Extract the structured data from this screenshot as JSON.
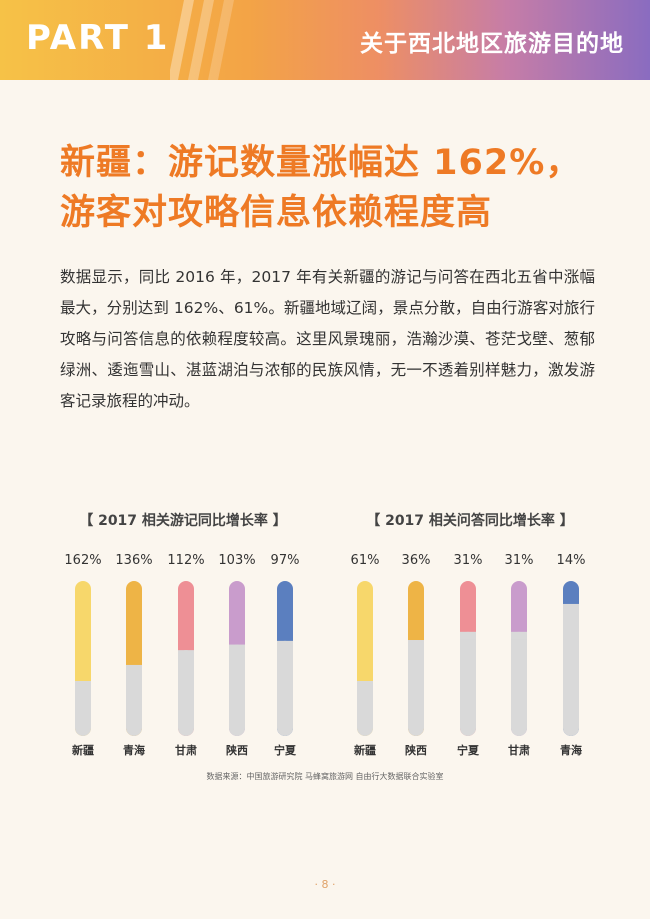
{
  "header": {
    "part_label": "PART 1",
    "section_title": "关于西北地区旅游目的地"
  },
  "article": {
    "title_line1": "新疆：游记数量涨幅达 162%，",
    "title_line2": "游客对攻略信息依赖程度高",
    "body": "数据显示，同比 2016 年，2017 年有关新疆的游记与问答在西北五省中涨幅最大，分别达到 162%、61%。新疆地域辽阔，景点分散，自由行游客对旅行攻略与问答信息的依赖程度较高。这里风景瑰丽，浩瀚沙漠、苍茫戈壁、葱郁绿洲、逶迤雪山、湛蓝湖泊与浓郁的民族风情，无一不透着别样魅力，激发游客记录旅程的冲动。"
  },
  "chart_data": [
    {
      "type": "bar",
      "title": "【 2017 相关游记同比增长率 】",
      "categories": [
        "新疆",
        "青海",
        "甘肃",
        "陕西",
        "宁夏"
      ],
      "values": [
        162,
        136,
        112,
        103,
        97
      ],
      "value_labels": [
        "162%",
        "136%",
        "112%",
        "103%",
        "97%"
      ],
      "colors": [
        "#f7d76b",
        "#eeb446",
        "#ee8f95",
        "#c99ccc",
        "#5b7fbf"
      ]
    },
    {
      "type": "bar",
      "title": "【 2017 相关问答同比增长率 】",
      "categories": [
        "新疆",
        "陕西",
        "宁夏",
        "甘肃",
        "青海"
      ],
      "values": [
        61,
        36,
        31,
        31,
        14
      ],
      "value_labels": [
        "61%",
        "36%",
        "31%",
        "31%",
        "14%"
      ],
      "colors": [
        "#f7d76b",
        "#eeb446",
        "#ee8f95",
        "#c99ccc",
        "#5b7fbf"
      ]
    }
  ],
  "source": "数据来源：中国旅游研究院 马蜂窝旅游网 自由行大数据联合实验室",
  "page_number": "· 8 ·",
  "colors": {
    "accent_orange": "#ee7a25",
    "track_gray": "#d9d9d9"
  }
}
